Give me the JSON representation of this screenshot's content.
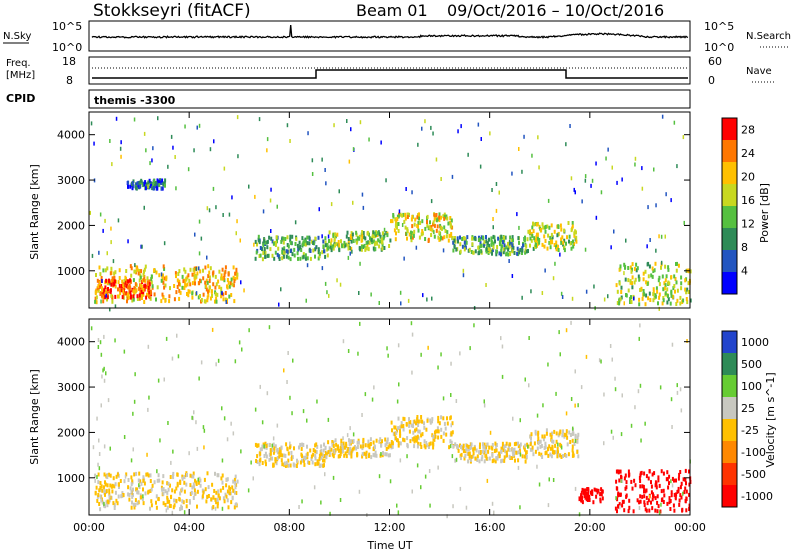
{
  "header": {
    "title": "Stokkseyri (fitACF)",
    "beam": "Beam 01",
    "date_range": "09/Oct/2016 – 10/Oct/2016"
  },
  "strip_nsky": {
    "left_label": "N.Sky",
    "tick_top": "10^5",
    "tick_bottom": "10^0",
    "right_label": "N.Search",
    "right_tick_top": "10^5",
    "right_tick_bottom": "10^0"
  },
  "strip_freq": {
    "left_label_1": "Freq.",
    "left_label_2": "[MHz]",
    "tick_top": "18",
    "tick_bottom": "8",
    "right_label": "Nave",
    "right_tick_top": "60",
    "right_tick_bottom": "0"
  },
  "cpid": {
    "label": "CPID",
    "program": "themis -3300"
  },
  "colors": {
    "power_scale": [
      "#0000ff",
      "#2255c0",
      "#2e8b57",
      "#55c040",
      "#c8d820",
      "#ffc000",
      "#ff7700",
      "#ff0000"
    ],
    "velocity_scale": [
      "#2244cc",
      "#2e8b57",
      "#66cc33",
      "#c8c8c0",
      "#ffc000",
      "#ff8800",
      "#ff3300",
      "#ff0000"
    ]
  },
  "chart_data": [
    {
      "type": "heatmap",
      "name": "power",
      "ylabel": "Slant Range [km]",
      "ylim": [
        180,
        4500
      ],
      "yticks": [
        "1000",
        "2000",
        "3000",
        "4000"
      ],
      "xticks": [
        "00:00",
        "04:00",
        "08:00",
        "12:00",
        "16:00",
        "20:00",
        "00:00"
      ],
      "colorbar_label": "Power [dB]",
      "colorbar_ticks": [
        "4",
        "8",
        "12",
        "16",
        "20",
        "24",
        "28"
      ],
      "colorbar_range": [
        0,
        30
      ],
      "regions": [
        {
          "t0": 0.2,
          "t1": 5.9,
          "r0": 350,
          "r1": 1150,
          "level": 20
        },
        {
          "t0": 0.3,
          "t1": 2.5,
          "r0": 450,
          "r1": 850,
          "level": 26
        },
        {
          "t0": 6.6,
          "t1": 9.5,
          "r0": 1300,
          "r1": 1800,
          "level": 12
        },
        {
          "t0": 9.5,
          "t1": 12.0,
          "r0": 1500,
          "r1": 1900,
          "level": 14
        },
        {
          "t0": 12.0,
          "t1": 14.5,
          "r0": 1700,
          "r1": 2300,
          "level": 18
        },
        {
          "t0": 14.5,
          "t1": 17.5,
          "r0": 1400,
          "r1": 1800,
          "level": 12
        },
        {
          "t0": 17.5,
          "t1": 19.5,
          "r0": 1500,
          "r1": 2100,
          "level": 16
        },
        {
          "t0": 21.0,
          "t1": 24.0,
          "r0": 300,
          "r1": 1200,
          "level": 16
        },
        {
          "t0": 1.5,
          "t1": 3.0,
          "r0": 2850,
          "r1": 3050,
          "level": 6
        }
      ]
    },
    {
      "type": "heatmap",
      "name": "velocity",
      "ylabel": "Slant Range [km]",
      "ylim": [
        180,
        4500
      ],
      "yticks": [
        "1000",
        "2000",
        "3000",
        "4000"
      ],
      "xticks": [
        "00:00",
        "04:00",
        "08:00",
        "12:00",
        "16:00",
        "20:00",
        "00:00"
      ],
      "xlabel": "Time UT",
      "colorbar_label": "Velocity [m s^-1]",
      "colorbar_ticks": [
        "1000",
        "500",
        "100",
        "25",
        "-25",
        "-100",
        "-500",
        "-1000"
      ],
      "regions": [
        {
          "t0": 0.2,
          "t1": 5.9,
          "r0": 350,
          "r1": 1150,
          "level": 0
        },
        {
          "t0": 6.6,
          "t1": 9.5,
          "r0": 1300,
          "r1": 1800,
          "level": 0
        },
        {
          "t0": 9.5,
          "t1": 12.0,
          "r0": 1500,
          "r1": 1900,
          "level": 0
        },
        {
          "t0": 12.0,
          "t1": 14.5,
          "r0": 1700,
          "r1": 2400,
          "level": 0
        },
        {
          "t0": 14.5,
          "t1": 17.5,
          "r0": 1400,
          "r1": 1800,
          "level": 0
        },
        {
          "t0": 17.5,
          "t1": 19.5,
          "r0": 1500,
          "r1": 2100,
          "level": 0
        },
        {
          "t0": 21.0,
          "t1": 24.0,
          "r0": 300,
          "r1": 1200,
          "level": -200
        },
        {
          "t0": 19.5,
          "t1": 20.5,
          "r0": 500,
          "r1": 800,
          "level": -300
        }
      ]
    }
  ]
}
